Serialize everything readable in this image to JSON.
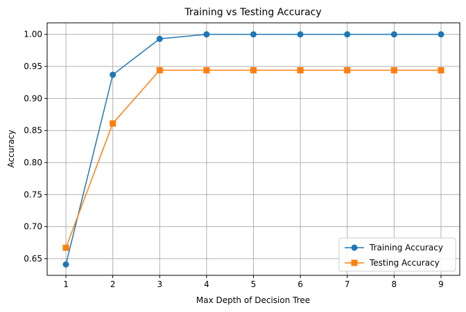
{
  "chart_data": {
    "type": "line",
    "title": "Training vs Testing Accuracy",
    "xlabel": "Max Depth of Decision Tree",
    "ylabel": "Accuracy",
    "x": [
      1,
      2,
      3,
      4,
      5,
      6,
      7,
      8,
      9
    ],
    "xticks": [
      "1",
      "2",
      "3",
      "4",
      "5",
      "6",
      "7",
      "8",
      "9"
    ],
    "yticks": [
      "0.65",
      "0.70",
      "0.75",
      "0.80",
      "0.85",
      "0.90",
      "0.95",
      "1.00"
    ],
    "xlim": [
      0.6,
      9.4
    ],
    "ylim": [
      0.624,
      1.018
    ],
    "grid": true,
    "legend_position": "bottom-right",
    "series": [
      {
        "name": "Training Accuracy",
        "marker": "circle",
        "color": "#1f77b4",
        "values": [
          0.641,
          0.937,
          0.993,
          1.0,
          1.0,
          1.0,
          1.0,
          1.0,
          1.0
        ]
      },
      {
        "name": "Testing Accuracy",
        "marker": "square",
        "color": "#ff7f0e",
        "values": [
          0.667,
          0.861,
          0.944,
          0.944,
          0.944,
          0.944,
          0.944,
          0.944,
          0.944
        ]
      }
    ]
  }
}
